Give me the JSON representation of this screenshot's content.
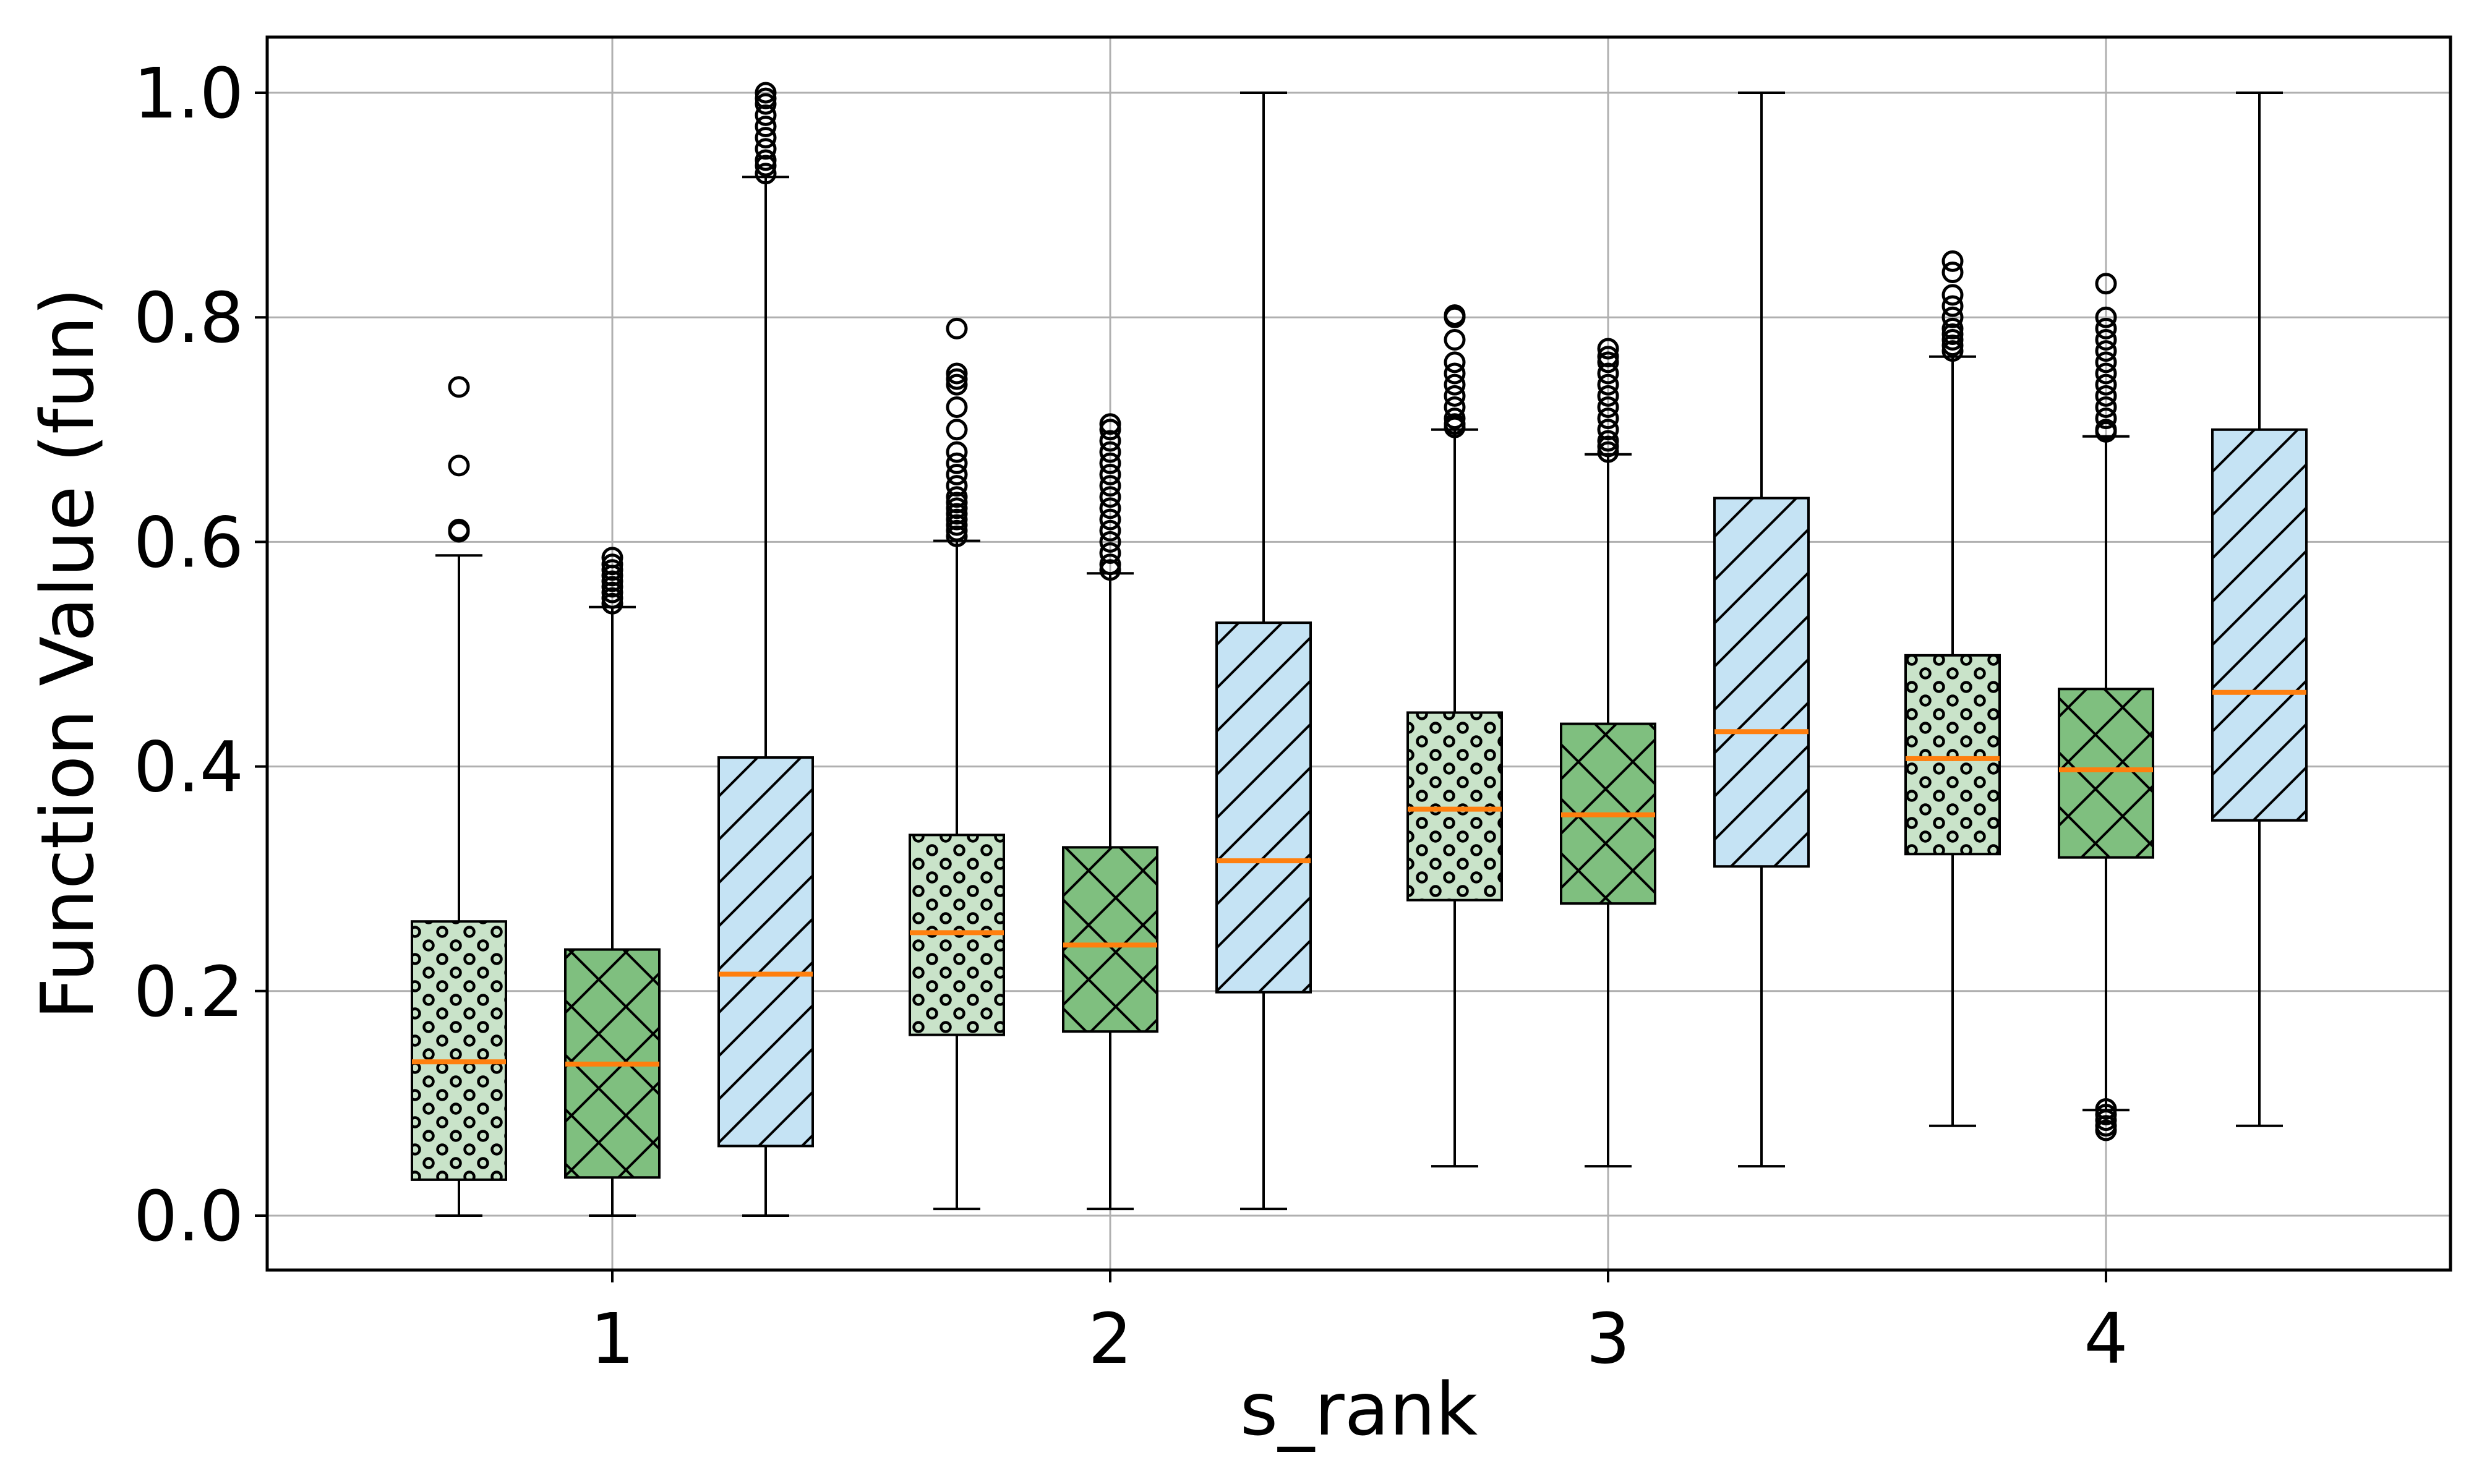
{
  "chart_data": {
    "type": "box",
    "xlabel": "s_rank",
    "ylabel": "Function Value (fun)",
    "ylim": [
      -0.05,
      1.05
    ],
    "grid": true,
    "categories": [
      "1",
      "2",
      "3",
      "4"
    ],
    "y_ticks": [
      "0.0",
      "0.2",
      "0.4",
      "0.6",
      "0.8",
      "1.0"
    ],
    "y_tick_values": [
      0.0,
      0.2,
      0.4,
      0.6,
      0.8,
      1.0
    ],
    "median_color": "#ff7f0e",
    "series": [
      {
        "fill": "#c9e3c9",
        "hatch": "dots",
        "boxes": [
          {
            "category": "1",
            "whisker_low": 0.0,
            "q1": 0.032,
            "median": 0.137,
            "q3": 0.262,
            "whisker_high": 0.588,
            "outliers": [
              0.609,
              0.611,
              0.668,
              0.738
            ]
          },
          {
            "category": "2",
            "whisker_low": 0.006,
            "q1": 0.161,
            "median": 0.252,
            "q3": 0.339,
            "whisker_high": 0.601,
            "outliers": [
              0.605,
              0.61,
              0.615,
              0.62,
              0.625,
              0.63,
              0.635,
              0.64,
              0.65,
              0.66,
              0.67,
              0.68,
              0.7,
              0.72,
              0.74,
              0.745,
              0.75,
              0.79
            ]
          },
          {
            "category": "3",
            "whisker_low": 0.044,
            "q1": 0.281,
            "median": 0.362,
            "q3": 0.448,
            "whisker_high": 0.7,
            "outliers": [
              0.702,
              0.705,
              0.71,
              0.72,
              0.73,
              0.74,
              0.75,
              0.76,
              0.78,
              0.8,
              0.802
            ]
          },
          {
            "category": "4",
            "whisker_low": 0.08,
            "q1": 0.322,
            "median": 0.407,
            "q3": 0.499,
            "whisker_high": 0.765,
            "outliers": [
              0.77,
              0.775,
              0.78,
              0.785,
              0.79,
              0.8,
              0.81,
              0.82,
              0.84,
              0.85
            ]
          }
        ]
      },
      {
        "fill": "#7fbf7f",
        "hatch": "cross",
        "boxes": [
          {
            "category": "1",
            "whisker_low": 0.0,
            "q1": 0.034,
            "median": 0.135,
            "q3": 0.237,
            "whisker_high": 0.542,
            "outliers": [
              0.545,
              0.55,
              0.555,
              0.56,
              0.565,
              0.57,
              0.575,
              0.58,
              0.586
            ]
          },
          {
            "category": "2",
            "whisker_low": 0.006,
            "q1": 0.164,
            "median": 0.241,
            "q3": 0.328,
            "whisker_high": 0.572,
            "outliers": [
              0.575,
              0.58,
              0.59,
              0.6,
              0.61,
              0.62,
              0.63,
              0.64,
              0.65,
              0.66,
              0.67,
              0.68,
              0.69,
              0.7,
              0.705
            ]
          },
          {
            "category": "3",
            "whisker_low": 0.044,
            "q1": 0.278,
            "median": 0.357,
            "q3": 0.438,
            "whisker_high": 0.678,
            "outliers": [
              0.68,
              0.685,
              0.69,
              0.7,
              0.71,
              0.72,
              0.73,
              0.74,
              0.75,
              0.76,
              0.765,
              0.772
            ]
          },
          {
            "category": "4",
            "whisker_low": 0.094,
            "q1": 0.319,
            "median": 0.397,
            "q3": 0.469,
            "whisker_high": 0.694,
            "outliers": [
              0.076,
              0.08,
              0.085,
              0.09,
              0.095,
              0.698,
              0.7,
              0.71,
              0.72,
              0.73,
              0.74,
              0.75,
              0.76,
              0.77,
              0.78,
              0.79,
              0.8,
              0.83
            ]
          }
        ]
      },
      {
        "fill": "#c5e3f4",
        "hatch": "diagonal",
        "boxes": [
          {
            "category": "1",
            "whisker_low": 0.0,
            "q1": 0.062,
            "median": 0.215,
            "q3": 0.408,
            "whisker_high": 0.925,
            "outliers": [
              0.928,
              0.935,
              0.94,
              0.95,
              0.96,
              0.97,
              0.98,
              0.99,
              0.995,
              1.0
            ]
          },
          {
            "category": "2",
            "whisker_low": 0.006,
            "q1": 0.199,
            "median": 0.316,
            "q3": 0.528,
            "whisker_high": 1.0,
            "outliers": []
          },
          {
            "category": "3",
            "whisker_low": 0.044,
            "q1": 0.311,
            "median": 0.431,
            "q3": 0.639,
            "whisker_high": 1.0,
            "outliers": []
          },
          {
            "category": "4",
            "whisker_low": 0.08,
            "q1": 0.352,
            "median": 0.466,
            "q3": 0.7,
            "whisker_high": 1.0,
            "outliers": []
          }
        ]
      }
    ]
  }
}
